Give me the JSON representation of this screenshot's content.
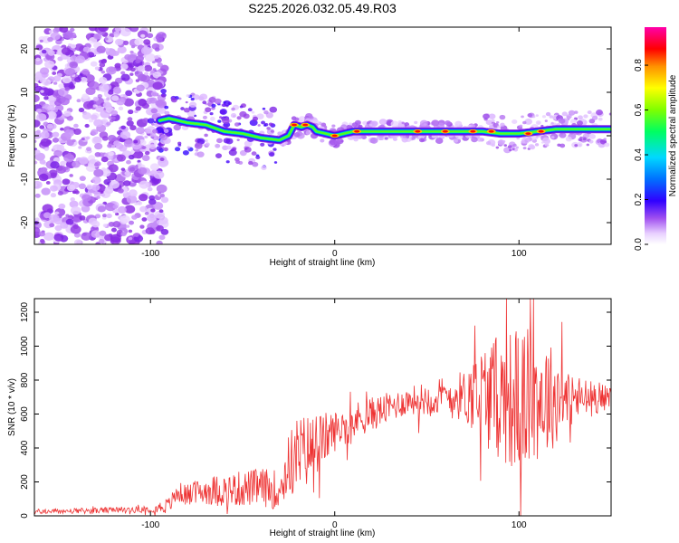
{
  "title": "S225.2026.032.05.49.R03",
  "chart_data": [
    {
      "type": "heatmap",
      "xlabel": "Height of straight line (km)",
      "ylabel": "Frequency (Hz)",
      "xlim": [
        -163,
        150
      ],
      "ylim": [
        -25,
        25
      ],
      "x_ticks": [
        -100,
        0,
        100
      ],
      "y_ticks": [
        -20,
        -10,
        0,
        10,
        20
      ],
      "colorbar": {
        "label": "Normalized spectral amplitude",
        "ticks": [
          0.0,
          0.2,
          0.4,
          0.6,
          0.8
        ],
        "range": [
          0,
          0.97
        ],
        "colormap": [
          "#ffffff",
          "#d9b0ff",
          "#8a2be2",
          "#3b00ff",
          "#0050ff",
          "#00c8ff",
          "#00ff80",
          "#66ff00",
          "#ffff00",
          "#ff9900",
          "#ff0000",
          "#ff00aa"
        ]
      },
      "ridge": {
        "description_points": [
          [
            -95,
            3.5
          ],
          [
            -90,
            4
          ],
          [
            -80,
            3
          ],
          [
            -70,
            2.5
          ],
          [
            -60,
            1
          ],
          [
            -50,
            0.5
          ],
          [
            -40,
            -0.5
          ],
          [
            -30,
            -1
          ],
          [
            -25,
            0
          ],
          [
            -22,
            2.5
          ],
          [
            -18,
            2
          ],
          [
            -15,
            2.5
          ],
          [
            -12,
            2
          ],
          [
            -10,
            1
          ],
          [
            -5,
            0.5
          ],
          [
            0,
            0
          ],
          [
            5,
            0.5
          ],
          [
            10,
            1
          ],
          [
            20,
            1
          ],
          [
            40,
            1
          ],
          [
            60,
            1
          ],
          [
            80,
            1
          ],
          [
            90,
            0.5
          ],
          [
            100,
            0.5
          ],
          [
            110,
            1
          ],
          [
            120,
            1.5
          ],
          [
            130,
            1.5
          ],
          [
            140,
            1.5
          ],
          [
            150,
            1.5
          ]
        ],
        "peak_amplitude_points": [
          [
            -22,
            2.5
          ],
          [
            -16,
            2.5
          ],
          [
            0,
            0
          ],
          [
            12,
            1
          ],
          [
            45,
            1
          ],
          [
            60,
            1
          ],
          [
            75,
            1
          ],
          [
            85,
            1
          ],
          [
            105,
            0.5
          ],
          [
            112,
            1
          ]
        ]
      }
    },
    {
      "type": "line",
      "xlabel": "Height of straight line (km)",
      "ylabel": "SNR (10 * v/v)",
      "xlim": [
        -163,
        150
      ],
      "ylim": [
        0,
        1280
      ],
      "x_ticks": [
        -100,
        0,
        100
      ],
      "y_ticks": [
        0,
        200,
        400,
        600,
        800,
        1000,
        1200
      ],
      "color": "#ee3333",
      "envelope": [
        [
          -163,
          25
        ],
        [
          -130,
          30
        ],
        [
          -100,
          40
        ],
        [
          -90,
          60
        ],
        [
          -85,
          140
        ],
        [
          -80,
          120
        ],
        [
          -70,
          150
        ],
        [
          -60,
          150
        ],
        [
          -50,
          160
        ],
        [
          -40,
          170
        ],
        [
          -30,
          150
        ],
        [
          -25,
          300
        ],
        [
          -20,
          350
        ],
        [
          -10,
          420
        ],
        [
          0,
          500
        ],
        [
          10,
          560
        ],
        [
          20,
          600
        ],
        [
          30,
          640
        ],
        [
          40,
          680
        ],
        [
          50,
          690
        ],
        [
          60,
          700
        ],
        [
          70,
          710
        ],
        [
          80,
          720
        ],
        [
          90,
          700
        ],
        [
          100,
          680
        ],
        [
          110,
          700
        ],
        [
          120,
          700
        ],
        [
          130,
          690
        ],
        [
          140,
          690
        ],
        [
          150,
          700
        ]
      ],
      "spread": [
        [
          -163,
          15
        ],
        [
          -100,
          20
        ],
        [
          -90,
          50
        ],
        [
          -60,
          100
        ],
        [
          -30,
          120
        ],
        [
          -20,
          250
        ],
        [
          0,
          120
        ],
        [
          40,
          80
        ],
        [
          70,
          150
        ],
        [
          80,
          300
        ],
        [
          100,
          450
        ],
        [
          115,
          350
        ],
        [
          130,
          150
        ],
        [
          150,
          60
        ]
      ]
    }
  ]
}
